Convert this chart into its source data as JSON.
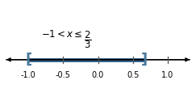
{
  "xlim": [
    -1.35,
    1.35
  ],
  "xticks": [
    -1.0,
    -0.5,
    0.0,
    0.5,
    1.0
  ],
  "xticklabels": [
    "-1.0",
    "-0.5",
    "0.0",
    "0.5",
    "1.0"
  ],
  "open_point": -1.0,
  "closed_point": 0.6667,
  "line_color": "#2e5f8a",
  "line_width": 3.5,
  "bracket_color": "#4a7a9b",
  "axis_color": "black",
  "background_color": "#ffffff",
  "title_fontsize": 8.5,
  "tick_fontsize": 7,
  "interval_fontsize": 9
}
